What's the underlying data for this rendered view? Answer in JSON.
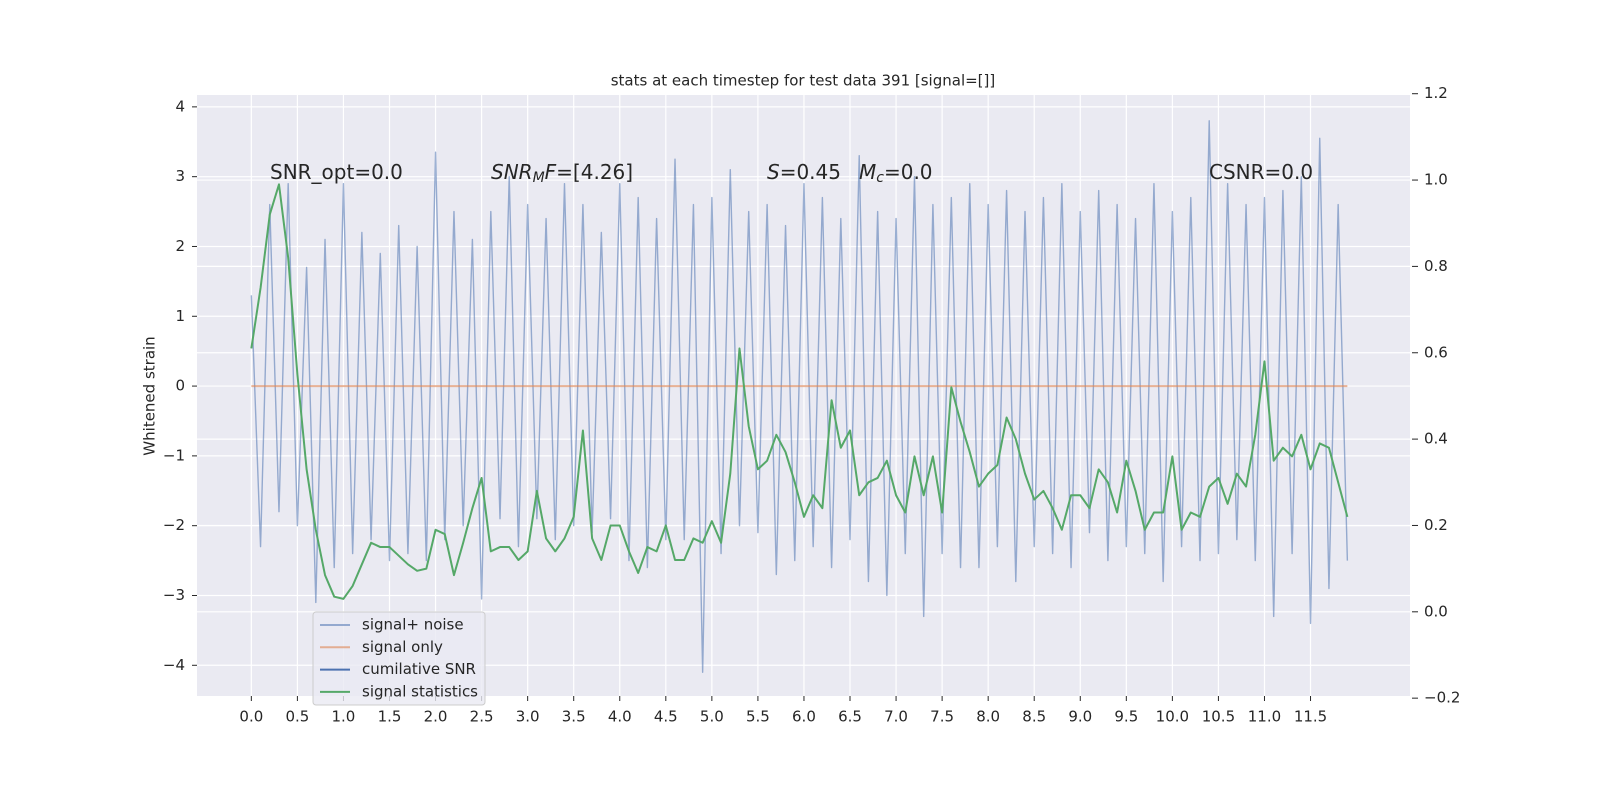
{
  "chart_data": {
    "type": "line",
    "title": "stats at each timestep for test data 391 [signal=[]]",
    "ylabel": "Whitened strain",
    "xlim": [
      -0.59,
      12.58
    ],
    "ylim": [
      -4.44,
      4.17
    ],
    "y2lim": [
      -0.195,
      1.197
    ],
    "grid": true,
    "background": "#eaeaf2",
    "legend": "lower left",
    "xticks": [
      {
        "value": 0,
        "label": "0.0"
      },
      0.5,
      {
        "value": 1,
        "label": "1.0"
      },
      1.5,
      {
        "value": 2,
        "label": "2.0"
      },
      2.5,
      {
        "value": 3,
        "label": "3.0"
      },
      3.5,
      {
        "value": 4,
        "label": "4.0"
      },
      4.5,
      {
        "value": 5,
        "label": "5.0"
      },
      5.5,
      {
        "value": 6,
        "label": "6.0"
      },
      6.5,
      {
        "value": 7,
        "label": "7.0"
      },
      7.5,
      {
        "value": 8,
        "label": "8.0"
      },
      8.5,
      {
        "value": 9,
        "label": "9.0"
      },
      9.5,
      {
        "value": 10,
        "label": "10.0"
      },
      10.5,
      {
        "value": 11,
        "label": "11.0"
      },
      11.5
    ],
    "yticks": [
      {
        "value": -4,
        "label": "−4"
      },
      {
        "value": -3,
        "label": "−3"
      },
      {
        "value": -2,
        "label": "−2"
      },
      {
        "value": -1,
        "label": "−1"
      },
      0,
      1,
      2,
      3,
      4
    ],
    "y2ticks": [
      {
        "value": -0.2,
        "label": "−0.2"
      },
      {
        "value": 0,
        "label": "0.0"
      },
      0.2,
      0.4,
      0.6,
      0.8,
      {
        "value": 1,
        "label": "1.0"
      },
      1.2
    ],
    "annotations": [
      {
        "parts": [
          {
            "text": "SNR_opt=0.0"
          }
        ]
      },
      {
        "parts": [
          {
            "text": "SNR",
            "style": "italic"
          },
          {
            "text": "M",
            "style": "italic",
            "sub": true
          },
          {
            "text": "F",
            "style": "italic"
          },
          {
            "text": "=[4.26]"
          }
        ]
      },
      {
        "parts": [
          {
            "text": "S",
            "style": "italic"
          },
          {
            "text": "=0.45"
          }
        ]
      },
      {
        "parts": [
          {
            "text": "M",
            "style": "italic"
          },
          {
            "text": "c",
            "style": "italic",
            "sub": true
          },
          {
            "text": "=0.0"
          }
        ]
      },
      {
        "parts": [
          {
            "text": "CSNR=0.0"
          }
        ]
      }
    ],
    "series": [
      {
        "name": "signal+ noise",
        "color": "#4c72b0",
        "alpha": 0.55,
        "x": [
          0,
          0.1,
          0.2,
          0.3,
          0.4,
          0.5,
          0.6,
          0.7,
          0.8,
          0.9,
          1,
          1.1,
          1.2,
          1.3,
          1.4,
          1.5,
          1.6,
          1.7,
          1.8,
          1.9,
          2,
          2.1,
          2.2,
          2.3,
          2.4,
          2.5,
          2.6,
          2.7,
          2.8,
          2.9,
          3,
          3.1,
          3.2,
          3.3,
          3.4,
          3.5,
          3.6,
          3.7,
          3.8,
          3.9,
          4,
          4.1,
          4.2,
          4.3,
          4.4,
          4.5,
          4.6,
          4.7,
          4.8,
          4.9,
          5,
          5.1,
          5.2,
          5.3,
          5.4,
          5.5,
          5.6,
          5.7,
          5.8,
          5.9,
          6,
          6.1,
          6.2,
          6.3,
          6.4,
          6.5,
          6.6,
          6.7,
          6.8,
          6.9,
          7,
          7.1,
          7.2,
          7.3,
          7.4,
          7.5,
          7.6,
          7.7,
          7.8,
          7.9,
          8,
          8.1,
          8.2,
          8.3,
          8.4,
          8.5,
          8.6,
          8.7,
          8.8,
          8.9,
          9,
          9.1,
          9.2,
          9.3,
          9.4,
          9.5,
          9.6,
          9.7,
          9.8,
          9.9,
          10,
          10.1,
          10.2,
          10.3,
          10.4,
          10.5,
          10.6,
          10.7,
          10.8,
          10.9,
          11,
          11.1,
          11.2,
          11.3,
          11.4,
          11.5,
          11.6,
          11.7,
          11.8,
          11.9
        ],
        "values": [
          1.3,
          -2.3,
          2.6,
          -1.8,
          2.9,
          -2.0,
          1.7,
          -3.1,
          2.1,
          -2.6,
          2.9,
          -2.4,
          2.2,
          -2.2,
          1.9,
          -2.5,
          2.3,
          -2.4,
          2.0,
          -2.5,
          3.35,
          -2.2,
          2.5,
          -2.0,
          2.1,
          -3.05,
          2.5,
          -1.9,
          3.0,
          -2.3,
          2.6,
          -1.9,
          2.4,
          -2.2,
          2.9,
          -2.0,
          2.6,
          -2.1,
          2.2,
          -1.9,
          2.9,
          -2.5,
          2.7,
          -2.6,
          2.4,
          -2.2,
          3.25,
          -2.2,
          2.6,
          -4.1,
          2.7,
          -2.4,
          3.1,
          -2.0,
          2.5,
          -2.1,
          2.6,
          -2.7,
          2.3,
          -2.5,
          2.9,
          -2.3,
          2.7,
          -2.6,
          2.4,
          -2.2,
          3.3,
          -2.8,
          2.5,
          -3.0,
          2.4,
          -2.4,
          3.0,
          -3.3,
          2.6,
          -2.4,
          2.7,
          -2.6,
          2.9,
          -2.6,
          2.6,
          -2.3,
          2.8,
          -2.8,
          2.5,
          -2.3,
          2.7,
          -2.4,
          2.9,
          -2.6,
          2.5,
          -2.1,
          2.8,
          -2.5,
          2.6,
          -2.3,
          2.4,
          -2.4,
          2.9,
          -2.8,
          2.5,
          -2.3,
          2.7,
          -2.5,
          3.8,
          -2.4,
          2.9,
          -2.2,
          2.6,
          -2.5,
          2.7,
          -3.3,
          2.8,
          -2.4,
          3.0,
          -3.4,
          3.55,
          -2.9,
          2.6,
          -2.5
        ]
      },
      {
        "name": "signal only",
        "color": "#dd8452",
        "alpha": 0.6,
        "x": [
          0,
          11.9
        ],
        "values": [
          0,
          0
        ]
      },
      {
        "name": "cumilative SNR",
        "color": "#4c72b0",
        "alpha": 1,
        "x": [],
        "values": []
      },
      {
        "name": "signal statistics",
        "color": "#55a868",
        "alpha": 1,
        "axis": "y2",
        "x": [
          0,
          0.1,
          0.2,
          0.3,
          0.4,
          0.5,
          0.6,
          0.7,
          0.8,
          0.9,
          1,
          1.1,
          1.2,
          1.3,
          1.4,
          1.5,
          1.6,
          1.7,
          1.8,
          1.9,
          2,
          2.1,
          2.2,
          2.3,
          2.4,
          2.5,
          2.6,
          2.7,
          2.8,
          2.9,
          3,
          3.1,
          3.2,
          3.3,
          3.4,
          3.5,
          3.6,
          3.7,
          3.8,
          3.9,
          4,
          4.1,
          4.2,
          4.3,
          4.4,
          4.5,
          4.6,
          4.7,
          4.8,
          4.9,
          5,
          5.1,
          5.2,
          5.3,
          5.4,
          5.5,
          5.6,
          5.7,
          5.8,
          5.9,
          6,
          6.1,
          6.2,
          6.3,
          6.4,
          6.5,
          6.6,
          6.7,
          6.8,
          6.9,
          7,
          7.1,
          7.2,
          7.3,
          7.4,
          7.5,
          7.6,
          7.7,
          7.8,
          7.9,
          8,
          8.1,
          8.2,
          8.3,
          8.4,
          8.5,
          8.6,
          8.7,
          8.8,
          8.9,
          9,
          9.1,
          9.2,
          9.3,
          9.4,
          9.5,
          9.6,
          9.7,
          9.8,
          9.9,
          10,
          10.1,
          10.2,
          10.3,
          10.4,
          10.5,
          10.6,
          10.7,
          10.8,
          10.9,
          11,
          11.1,
          11.2,
          11.3,
          11.4,
          11.5,
          11.6,
          11.7,
          11.8,
          11.9
        ],
        "values": [
          0.61,
          0.75,
          0.92,
          0.99,
          0.82,
          0.55,
          0.33,
          0.19,
          0.085,
          0.035,
          0.03,
          0.06,
          0.11,
          0.16,
          0.15,
          0.15,
          0.13,
          0.11,
          0.095,
          0.1,
          0.19,
          0.18,
          0.085,
          0.16,
          0.24,
          0.31,
          0.14,
          0.15,
          0.15,
          0.12,
          0.14,
          0.28,
          0.17,
          0.14,
          0.17,
          0.22,
          0.42,
          0.17,
          0.12,
          0.2,
          0.2,
          0.14,
          0.09,
          0.15,
          0.14,
          0.2,
          0.12,
          0.12,
          0.17,
          0.16,
          0.21,
          0.16,
          0.32,
          0.61,
          0.43,
          0.33,
          0.35,
          0.41,
          0.37,
          0.3,
          0.22,
          0.27,
          0.24,
          0.49,
          0.38,
          0.42,
          0.27,
          0.3,
          0.31,
          0.35,
          0.27,
          0.23,
          0.36,
          0.27,
          0.36,
          0.23,
          0.52,
          0.44,
          0.37,
          0.29,
          0.32,
          0.34,
          0.45,
          0.4,
          0.32,
          0.26,
          0.28,
          0.24,
          0.19,
          0.27,
          0.27,
          0.24,
          0.33,
          0.3,
          0.23,
          0.35,
          0.28,
          0.19,
          0.23,
          0.23,
          0.36,
          0.19,
          0.23,
          0.22,
          0.29,
          0.31,
          0.25,
          0.32,
          0.29,
          0.41,
          0.58,
          0.35,
          0.38,
          0.36,
          0.41,
          0.33,
          0.39,
          0.38,
          0.3,
          0.22
        ]
      }
    ]
  }
}
